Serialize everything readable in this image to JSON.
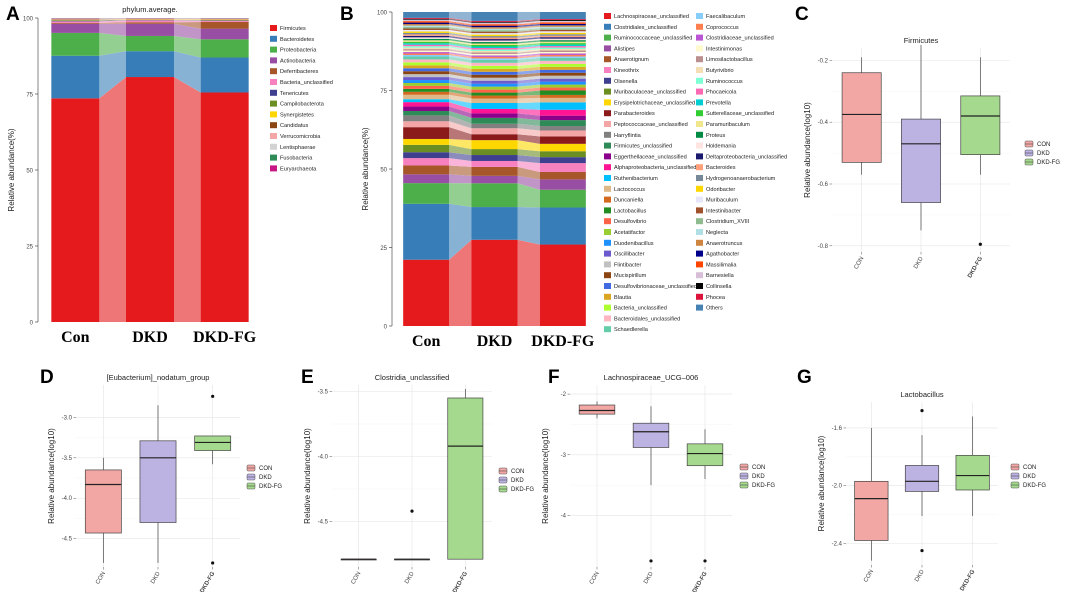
{
  "panel_letters": [
    "A",
    "B",
    "C",
    "D",
    "E",
    "F",
    "G"
  ],
  "chart_data": [
    {
      "panel": "A",
      "type": "area",
      "title": "phylum.average.",
      "ylabel": "Relative abundance(%)",
      "ylim": [
        0,
        100
      ],
      "yticks": [
        "0",
        "25",
        "50",
        "75",
        "100"
      ],
      "categories": [
        "Con",
        "DKD",
        "DKD-FG"
      ],
      "series": [
        {
          "name": "Firmicutes",
          "color": "#E41A1C",
          "values": [
            73.5,
            80.5,
            75.5
          ]
        },
        {
          "name": "Bacteroidetes",
          "color": "#377EB8",
          "values": [
            14,
            8.5,
            11.5
          ]
        },
        {
          "name": "Proteobacteria",
          "color": "#4DAF4A",
          "values": [
            7.5,
            5,
            6
          ]
        },
        {
          "name": "Actinobacteria",
          "color": "#984EA3",
          "values": [
            3,
            4,
            3.5
          ]
        },
        {
          "name": "Deferribacteres",
          "color": "#A65628",
          "values": [
            0.3,
            0.5,
            2.2
          ]
        },
        {
          "name": "Bacteria_unclassified",
          "color": "#F781BF",
          "values": [
            0.5,
            0.6,
            0.4
          ]
        },
        {
          "name": "Tenericutes",
          "color": "#3F3F8F",
          "values": [
            0.2,
            0.1,
            0.1
          ]
        },
        {
          "name": "Campilobacterota",
          "color": "#6B8E23",
          "values": [
            0.2,
            0.1,
            0.2
          ]
        },
        {
          "name": "Synergistetes",
          "color": "#FFD700",
          "values": [
            0.1,
            0.1,
            0.1
          ]
        },
        {
          "name": "Candidatus",
          "color": "#8B4513",
          "values": [
            0.1,
            0.1,
            0.1
          ]
        },
        {
          "name": "Verrucomicrobia",
          "color": "#F4A6A6",
          "values": [
            0.2,
            0.1,
            0.1
          ]
        },
        {
          "name": "Lentisphaerae",
          "color": "#D3D3D3",
          "values": [
            0.1,
            0.1,
            0.1
          ]
        },
        {
          "name": "Fusobacteria",
          "color": "#2E8B57",
          "values": [
            0.1,
            0.1,
            0.1
          ]
        },
        {
          "name": "Euryarchaeota",
          "color": "#C71585",
          "values": [
            0.1,
            0.1,
            0.1
          ]
        }
      ]
    },
    {
      "panel": "B",
      "type": "area",
      "title": "",
      "ylabel": "Relative abundance(%)",
      "ylim": [
        0,
        100
      ],
      "yticks": [
        "0",
        "25",
        "50",
        "75",
        "100"
      ],
      "categories": [
        "Con",
        "DKD",
        "DKD-FG"
      ],
      "series": [
        {
          "name": "Lachnospiraceae_unclassified",
          "color": "#E41A1C",
          "values": [
            22.5,
            29,
            27.5
          ]
        },
        {
          "name": "Clostridiales_unclassified",
          "color": "#377EB8",
          "values": [
            19,
            11,
            12.5
          ]
        },
        {
          "name": "Ruminococcaceae_unclassified",
          "color": "#4DAF4A",
          "values": [
            7,
            8,
            6
          ]
        },
        {
          "name": "Alistipes",
          "color": "#984EA3",
          "values": [
            3,
            2.5,
            3.5
          ]
        },
        {
          "name": "Anaerotignum",
          "color": "#A65628",
          "values": [
            3,
            3,
            2.5
          ]
        },
        {
          "name": "Kineothrix",
          "color": "#F781BF",
          "values": [
            2.5,
            2,
            3
          ]
        },
        {
          "name": "Olsenella",
          "color": "#3F3F8F",
          "values": [
            2,
            2,
            2
          ]
        },
        {
          "name": "Muribaculaceae_unclassified",
          "color": "#6B8E23",
          "values": [
            2.5,
            2,
            2
          ]
        },
        {
          "name": "Erysipelotrichaceae_unclassified",
          "color": "#FFD700",
          "values": [
            2,
            3,
            2.5
          ]
        },
        {
          "name": "Parabacteroides",
          "color": "#8B1A1A",
          "values": [
            4,
            2,
            2.5
          ]
        },
        {
          "name": "Peptococcaceae_unclassified",
          "color": "#F4A6A6",
          "values": [
            2,
            2,
            2
          ]
        },
        {
          "name": "Harryflintia",
          "color": "#808080",
          "values": [
            2,
            1.5,
            1.5
          ]
        },
        {
          "name": "Firmicutes_unclassified",
          "color": "#2E8B57",
          "values": [
            1.5,
            2,
            2
          ]
        },
        {
          "name": "Eggerthellaceae_unclassified",
          "color": "#8B008B",
          "values": [
            1.5,
            1.5,
            1.5
          ]
        },
        {
          "name": "Alphaproteobacteria_unclassified",
          "color": "#FF1493",
          "values": [
            1.5,
            1.5,
            2
          ]
        },
        {
          "name": "Ruthenibacterium",
          "color": "#00BFFF",
          "values": [
            1,
            2,
            2.5
          ]
        },
        {
          "name": "Lactococcus",
          "color": "#DEB887",
          "values": [
            1.5,
            1.5,
            1.5
          ]
        },
        {
          "name": "Duncaniella",
          "color": "#D2691E",
          "values": [
            1,
            1,
            1
          ]
        },
        {
          "name": "Lactobacillus",
          "color": "#228B22",
          "values": [
            1,
            1,
            1.5
          ]
        },
        {
          "name": "Desulfovibrio",
          "color": "#FF6347",
          "values": [
            1,
            1,
            1
          ]
        },
        {
          "name": "Acetatifactor",
          "color": "#9ACD32",
          "values": [
            1,
            1,
            1
          ]
        },
        {
          "name": "Duodenibacillus",
          "color": "#1E90FF",
          "values": [
            1,
            1,
            1
          ]
        },
        {
          "name": "Oscillibacter",
          "color": "#6A5ACD",
          "values": [
            1,
            1,
            1
          ]
        },
        {
          "name": "Flintibacter",
          "color": "#C0C0C0",
          "values": [
            1,
            1,
            1
          ]
        },
        {
          "name": "Mucispirillum",
          "color": "#8B4513",
          "values": [
            1,
            1,
            1
          ]
        },
        {
          "name": "Desulfovibrionaceae_unclassified",
          "color": "#4169E1",
          "values": [
            1,
            1,
            1
          ]
        },
        {
          "name": "Blautia",
          "color": "#DAA520",
          "values": [
            1,
            1,
            1
          ]
        },
        {
          "name": "Bacteria_unclassified",
          "color": "#ADFF2F",
          "values": [
            1,
            1,
            1
          ]
        },
        {
          "name": "Bacteroidales_unclassified",
          "color": "#FFB6C1",
          "values": [
            1,
            1,
            1
          ]
        },
        {
          "name": "Schaedlerella",
          "color": "#66CDAA",
          "values": [
            1,
            1,
            1
          ]
        },
        {
          "name": "Faecalibaculum",
          "color": "#87CEFA",
          "values": [
            0.5,
            0.5,
            0.5
          ]
        },
        {
          "name": "Coprococcus",
          "color": "#FF7F50",
          "values": [
            0.5,
            0.5,
            0.5
          ]
        },
        {
          "name": "Clostridiaceae_unclassified",
          "color": "#BA55D3",
          "values": [
            0.5,
            0.5,
            0.5
          ]
        },
        {
          "name": "Intestinimonas",
          "color": "#FFFACD",
          "values": [
            0.5,
            0.5,
            0.5
          ]
        },
        {
          "name": "Limosilactobacillus",
          "color": "#BC8F8F",
          "values": [
            0.5,
            0.5,
            0.5
          ]
        },
        {
          "name": "Butyrivibrio",
          "color": "#F5DEB3",
          "values": [
            0.5,
            0.5,
            0.5
          ]
        },
        {
          "name": "Ruminococcus",
          "color": "#7FFFD4",
          "values": [
            0.5,
            0.5,
            0.5
          ]
        },
        {
          "name": "Phocaeicola",
          "color": "#FF69B4",
          "values": [
            0.5,
            0.5,
            0.5
          ]
        },
        {
          "name": "Prevotella",
          "color": "#00CED1",
          "values": [
            0.5,
            0.5,
            0.5
          ]
        },
        {
          "name": "Sutterellaceae_unclassified",
          "color": "#32CD32",
          "values": [
            0.5,
            0.5,
            0.5
          ]
        },
        {
          "name": "Paramuribaculum",
          "color": "#F0E68C",
          "values": [
            0.5,
            0.5,
            0.5
          ]
        },
        {
          "name": "Proteus",
          "color": "#008B45",
          "values": [
            0.5,
            0.5,
            0.5
          ]
        },
        {
          "name": "Holdemania",
          "color": "#FFE4E1",
          "values": [
            0.5,
            0.5,
            0.5
          ]
        },
        {
          "name": "Deltaproteobacteria_unclassified",
          "color": "#191970",
          "values": [
            0.5,
            0.5,
            0.5
          ]
        },
        {
          "name": "Bacteroides",
          "color": "#FFA07A",
          "values": [
            0.5,
            0.5,
            0.5
          ]
        },
        {
          "name": "Hydrogenoanaerobacterium",
          "color": "#778899",
          "values": [
            0.5,
            0.5,
            0.5
          ]
        },
        {
          "name": "Odoribacter",
          "color": "#FFD700",
          "values": [
            0.5,
            0.5,
            0.5
          ]
        },
        {
          "name": "Muribaculum",
          "color": "#E6E6FA",
          "values": [
            0.5,
            0.5,
            0.5
          ]
        },
        {
          "name": "Intestinibacter",
          "color": "#A0522D",
          "values": [
            0.5,
            0.5,
            0.5
          ]
        },
        {
          "name": "Clostridium_XVIII",
          "color": "#8FBC8F",
          "values": [
            0.5,
            0.5,
            0.5
          ]
        },
        {
          "name": "Neglecta",
          "color": "#B0E0E6",
          "values": [
            0.5,
            0.5,
            0.5
          ]
        },
        {
          "name": "Anaerotruncus",
          "color": "#CD853F",
          "values": [
            0.5,
            0.5,
            0.5
          ]
        },
        {
          "name": "Agathobacter",
          "color": "#00008B",
          "values": [
            0.5,
            0.5,
            0.5
          ]
        },
        {
          "name": "Massilimalia",
          "color": "#FF4500",
          "values": [
            0.5,
            0.5,
            0.5
          ]
        },
        {
          "name": "Barnesiella",
          "color": "#D8BFD8",
          "values": [
            0.5,
            0.5,
            0.5
          ]
        },
        {
          "name": "Collinsella",
          "color": "#000000",
          "values": [
            0.3,
            0.3,
            0.3
          ]
        },
        {
          "name": "Phocea",
          "color": "#DC143C",
          "values": [
            0.3,
            0.3,
            0.3
          ]
        },
        {
          "name": "Others",
          "color": "#4682B4",
          "values": [
            2,
            3,
            2.4
          ]
        }
      ]
    },
    {
      "panel": "C",
      "type": "box",
      "title": "Firmicutes",
      "ylabel": "Relative abundance(log10)",
      "ylim": [
        -0.82,
        -0.16
      ],
      "yticks": [
        -0.8,
        -0.6,
        -0.4,
        -0.2
      ],
      "yticklabels": [
        "-0.8",
        "-0.6",
        "-0.4",
        "-0.2"
      ],
      "groups": [
        "CON",
        "DKD",
        "DKD-FG"
      ],
      "boxes": [
        {
          "q1": -0.53,
          "median": -0.375,
          "q3": -0.24,
          "whislo": -0.57,
          "whishi": -0.19,
          "outliers": []
        },
        {
          "q1": -0.66,
          "median": -0.47,
          "q3": -0.39,
          "whislo": -0.75,
          "whishi": -0.15,
          "outliers": []
        },
        {
          "q1": -0.505,
          "median": -0.38,
          "q3": -0.315,
          "whislo": -0.57,
          "whishi": -0.19,
          "outliers": [
            -0.795
          ]
        }
      ]
    },
    {
      "panel": "D",
      "type": "box",
      "title": "[Eubacterium]_nodatum_group",
      "ylabel": "Relative abundance(log10)",
      "ylim": [
        -4.85,
        -2.6
      ],
      "yticks": [
        -4.5,
        -4.0,
        -3.5,
        -3.0
      ],
      "yticklabels": [
        "-4.5",
        "-4.0",
        "-3.5",
        "-3.0"
      ],
      "groups": [
        "CON",
        "DKD",
        "DKD-FG"
      ],
      "boxes": [
        {
          "q1": -4.43,
          "median": -3.83,
          "q3": -3.65,
          "whislo": -4.8,
          "whishi": -3.5,
          "outliers": []
        },
        {
          "q1": -4.3,
          "median": -3.5,
          "q3": -3.29,
          "whislo": -4.8,
          "whishi": -2.85,
          "outliers": []
        },
        {
          "q1": -3.41,
          "median": -3.31,
          "q3": -3.23,
          "whislo": -3.58,
          "whishi": -3.23,
          "outliers": [
            -2.74,
            -4.8
          ]
        }
      ]
    },
    {
      "panel": "E",
      "type": "box",
      "title": "Clostridia_unclassified",
      "ylabel": "Relative abundance(log10)",
      "ylim": [
        -4.85,
        -3.45
      ],
      "yticks": [
        -4.5,
        -4.0,
        -3.5
      ],
      "yticklabels": [
        "-4.5",
        "-4.0",
        "-3.5"
      ],
      "groups": [
        "CON",
        "DKD",
        "DKD-FG"
      ],
      "boxes": [
        {
          "q1": -4.79,
          "median": -4.79,
          "q3": -4.79,
          "whislo": -4.79,
          "whishi": -4.79,
          "outliers": []
        },
        {
          "q1": -4.79,
          "median": -4.79,
          "q3": -4.79,
          "whislo": -4.79,
          "whishi": -4.79,
          "outliers": [
            -4.42
          ]
        },
        {
          "q1": -4.79,
          "median": -3.92,
          "q3": -3.55,
          "whislo": -4.79,
          "whishi": -3.48,
          "outliers": []
        }
      ]
    },
    {
      "panel": "F",
      "type": "box",
      "title": "Lachnospiraceae_UCG–006",
      "ylabel": "Relative abundance(log10)",
      "ylim": [
        -4.85,
        -1.85
      ],
      "yticks": [
        -4,
        -3,
        -2
      ],
      "yticklabels": [
        "-4",
        "-3",
        "-2"
      ],
      "groups": [
        "CON",
        "DKD",
        "DKD-FG"
      ],
      "boxes": [
        {
          "q1": -2.33,
          "median": -2.27,
          "q3": -2.18,
          "whislo": -2.4,
          "whishi": -2.12,
          "outliers": []
        },
        {
          "q1": -2.88,
          "median": -2.62,
          "q3": -2.48,
          "whislo": -3.5,
          "whishi": -2.2,
          "outliers": [
            -4.75
          ]
        },
        {
          "q1": -3.18,
          "median": -2.98,
          "q3": -2.82,
          "whislo": -3.4,
          "whishi": -2.58,
          "outliers": [
            -4.75
          ]
        }
      ]
    },
    {
      "panel": "G",
      "type": "box",
      "title": "Lactobacillus",
      "ylabel": "Relative abundance(log10)",
      "ylim": [
        -2.55,
        -1.42
      ],
      "yticks": [
        -2.4,
        -2.0,
        -1.6
      ],
      "yticklabels": [
        "-2.4",
        "-2.0",
        "-1.6"
      ],
      "groups": [
        "CON",
        "DKD",
        "DKD-FG"
      ],
      "boxes": [
        {
          "q1": -2.38,
          "median": -2.09,
          "q3": -1.97,
          "whislo": -2.52,
          "whishi": -1.6,
          "outliers": []
        },
        {
          "q1": -2.04,
          "median": -1.97,
          "q3": -1.86,
          "whislo": -2.21,
          "whishi": -1.65,
          "outliers": [
            -1.48,
            -2.45
          ]
        },
        {
          "q1": -2.03,
          "median": -1.93,
          "q3": -1.79,
          "whislo": -2.21,
          "whishi": -1.52,
          "outliers": []
        }
      ]
    }
  ],
  "box_colors": {
    "CON": "#F2A7A4",
    "DKD": "#BDB3E3",
    "DKD-FG": "#A5D98D"
  }
}
